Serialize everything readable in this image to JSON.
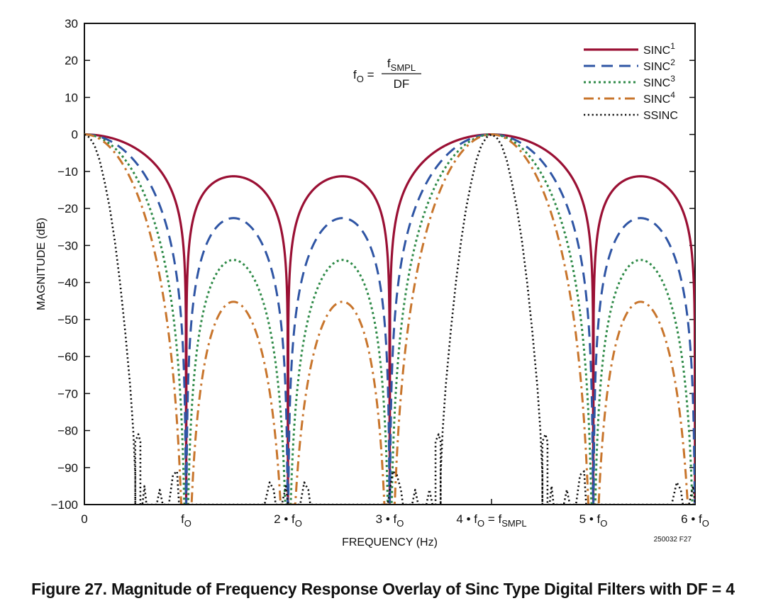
{
  "chart_data": {
    "type": "line",
    "title": "",
    "xlabel": "FREQUENCY (Hz)",
    "ylabel": "MAGNITUDE (dB)",
    "xlim": [
      0,
      6
    ],
    "ylim": [
      -100,
      30
    ],
    "yticks": [
      30,
      20,
      10,
      0,
      -10,
      -20,
      -30,
      -40,
      -50,
      -60,
      -70,
      -80,
      -90,
      -100
    ],
    "ytick_labels": [
      "30",
      "20",
      "10",
      "0",
      "−10",
      "−20",
      "−30",
      "−40",
      "−50",
      "−60",
      "−70",
      "−80",
      "−90",
      "−100"
    ],
    "xticks": [
      0,
      1,
      2,
      3,
      4,
      5,
      6
    ],
    "xtick_labels": [
      {
        "main": "0",
        "sub": "",
        "tail": "",
        "tailsub": ""
      },
      {
        "main": "f",
        "sub": "O",
        "tail": "",
        "tailsub": ""
      },
      {
        "main": "2 • f",
        "sub": "O",
        "tail": "",
        "tailsub": ""
      },
      {
        "main": "3 • f",
        "sub": "O",
        "tail": "",
        "tailsub": ""
      },
      {
        "main": "4 • f",
        "sub": "O",
        "tail": " = f",
        "tailsub": "SMPL"
      },
      {
        "main": "5 • f",
        "sub": "O",
        "tail": "",
        "tailsub": ""
      },
      {
        "main": "6 • f",
        "sub": "O",
        "tail": "",
        "tailsub": ""
      }
    ],
    "legend_position": "top-right",
    "formula": {
      "lhs": "f",
      "lhs_sub": "O",
      "eq": "=",
      "num": "f",
      "num_sub": "SMPL",
      "den": "DF"
    },
    "code": "250032  F27",
    "floor_db": -100,
    "series": [
      {
        "name": "SINC",
        "sup": "1",
        "order": 1,
        "style": "solid",
        "color": "#9a1034"
      },
      {
        "name": "SINC",
        "sup": "2",
        "order": 2,
        "style": "dash",
        "color": "#2f55a4"
      },
      {
        "name": "SINC",
        "sup": "3",
        "order": 3,
        "style": "dot-green",
        "color": "#2e8a47"
      },
      {
        "name": "SINC",
        "sup": "4",
        "order": 4,
        "style": "dashdot",
        "color": "#c8752c"
      },
      {
        "name": "SSINC",
        "sup": "",
        "order": 0,
        "style": "dot-black",
        "color": "#111111",
        "points": [
          [
            0,
            0
          ],
          [
            0.05,
            -0.8
          ],
          [
            0.1,
            -3
          ],
          [
            0.15,
            -7
          ],
          [
            0.2,
            -13
          ],
          [
            0.25,
            -20
          ],
          [
            0.3,
            -29
          ],
          [
            0.35,
            -40
          ],
          [
            0.4,
            -53
          ],
          [
            0.45,
            -68
          ],
          [
            0.48,
            -80
          ],
          [
            0.5,
            -92
          ],
          [
            0.5,
            -100
          ],
          [
            0.5,
            -100
          ],
          [
            0.5,
            -83
          ],
          [
            0.53,
            -81
          ],
          [
            0.55,
            -83
          ],
          [
            0.55,
            -100
          ],
          [
            0.57,
            -100
          ],
          [
            0.59,
            -95
          ],
          [
            0.61,
            -100
          ],
          [
            0.71,
            -100
          ],
          [
            0.74,
            -96
          ],
          [
            0.77,
            -100
          ],
          [
            0.83,
            -100
          ],
          [
            0.87,
            -92
          ],
          [
            0.91,
            -91
          ],
          [
            0.93,
            -100
          ],
          [
            1.77,
            -100
          ],
          [
            1.82,
            -94
          ],
          [
            1.86,
            -96
          ],
          [
            1.88,
            -100
          ],
          [
            1.94,
            -100
          ],
          [
            1.98,
            -95
          ],
          [
            2.0,
            -100
          ],
          [
            2.12,
            -100
          ],
          [
            2.16,
            -94
          ],
          [
            2.2,
            -96
          ],
          [
            2.22,
            -100
          ],
          [
            2.98,
            -100
          ],
          [
            3.03,
            -91
          ],
          [
            3.07,
            -92
          ],
          [
            3.11,
            -96
          ],
          [
            3.13,
            -100
          ],
          [
            3.22,
            -100
          ],
          [
            3.25,
            -96
          ],
          [
            3.28,
            -100
          ],
          [
            3.36,
            -100
          ],
          [
            3.39,
            -96
          ],
          [
            3.42,
            -100
          ],
          [
            3.45,
            -100
          ],
          [
            3.45,
            -83
          ],
          [
            3.48,
            -81
          ],
          [
            3.5,
            -83
          ],
          [
            3.5,
            -100
          ],
          [
            3.5,
            -92
          ],
          [
            3.52,
            -80
          ],
          [
            3.55,
            -68
          ],
          [
            3.6,
            -53
          ],
          [
            3.65,
            -40
          ],
          [
            3.7,
            -29
          ],
          [
            3.75,
            -20
          ],
          [
            3.8,
            -13
          ],
          [
            3.85,
            -7
          ],
          [
            3.9,
            -3
          ],
          [
            3.95,
            -0.8
          ],
          [
            4.0,
            0
          ],
          [
            4.05,
            -0.8
          ],
          [
            4.1,
            -3
          ],
          [
            4.15,
            -7
          ],
          [
            4.2,
            -13
          ],
          [
            4.25,
            -20
          ],
          [
            4.3,
            -29
          ],
          [
            4.35,
            -40
          ],
          [
            4.4,
            -53
          ],
          [
            4.45,
            -68
          ],
          [
            4.48,
            -80
          ],
          [
            4.5,
            -92
          ],
          [
            4.5,
            -100
          ],
          [
            4.5,
            -100
          ],
          [
            4.5,
            -83
          ],
          [
            4.53,
            -81
          ],
          [
            4.55,
            -83
          ],
          [
            4.55,
            -100
          ],
          [
            4.57,
            -100
          ],
          [
            4.59,
            -95
          ],
          [
            4.61,
            -100
          ],
          [
            4.71,
            -100
          ],
          [
            4.74,
            -96
          ],
          [
            4.77,
            -100
          ],
          [
            4.83,
            -100
          ],
          [
            4.87,
            -92
          ],
          [
            4.91,
            -91
          ],
          [
            4.93,
            -100
          ],
          [
            5.77,
            -100
          ],
          [
            5.82,
            -94
          ],
          [
            5.86,
            -96
          ],
          [
            5.88,
            -100
          ],
          [
            5.94,
            -100
          ],
          [
            5.98,
            -95
          ],
          [
            6.0,
            -100
          ]
        ]
      }
    ]
  },
  "caption": "Figure 27. Magnitude of Frequency Response Overlay of Sinc Type Digital Filters with DF = 4"
}
